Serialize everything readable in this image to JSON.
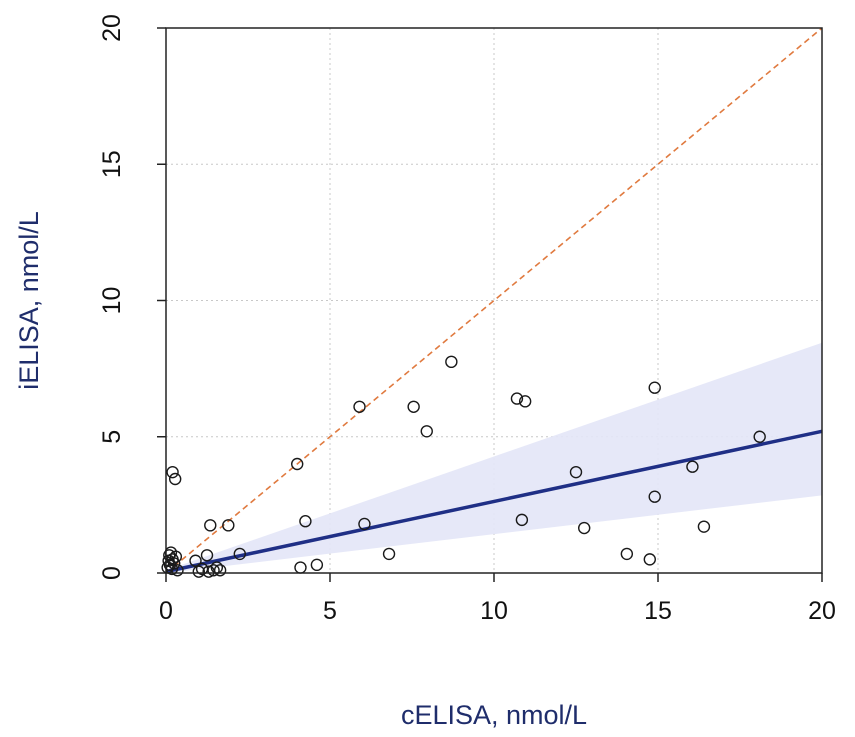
{
  "chart_data": {
    "type": "scatter",
    "xlabel": "cELISA, nmol/L",
    "ylabel": "iELISA, nmol/L",
    "xlim": [
      0,
      20
    ],
    "ylim": [
      0,
      20
    ],
    "x_ticks": [
      "0",
      "5",
      "10",
      "15",
      "20"
    ],
    "y_ticks": [
      "0",
      "5",
      "10",
      "15",
      "20"
    ],
    "grid": true,
    "colors": {
      "points": "#1a1a1a",
      "regression": "#1f2f86",
      "confidence_band": "#e3e5f7",
      "identity": "#e07a3f",
      "axis_title": "#1f2d6b",
      "grid": "#c8c8c8"
    },
    "series": [
      {
        "name": "samples",
        "type": "scatter",
        "points": [
          [
            0.05,
            0.2
          ],
          [
            0.08,
            0.45
          ],
          [
            0.1,
            0.65
          ],
          [
            0.12,
            0.3
          ],
          [
            0.15,
            0.75
          ],
          [
            0.2,
            0.5
          ],
          [
            0.25,
            0.35
          ],
          [
            0.3,
            0.6
          ],
          [
            0.18,
            0.15
          ],
          [
            0.35,
            0.1
          ],
          [
            0.2,
            3.7
          ],
          [
            0.28,
            3.45
          ],
          [
            0.9,
            0.45
          ],
          [
            1.0,
            0.05
          ],
          [
            1.1,
            0.15
          ],
          [
            1.25,
            0.65
          ],
          [
            1.3,
            0.05
          ],
          [
            1.35,
            1.75
          ],
          [
            1.45,
            0.1
          ],
          [
            1.55,
            0.2
          ],
          [
            1.65,
            0.1
          ],
          [
            1.9,
            1.75
          ],
          [
            2.25,
            0.7
          ],
          [
            4.0,
            4.0
          ],
          [
            4.1,
            0.2
          ],
          [
            4.25,
            1.9
          ],
          [
            4.6,
            0.3
          ],
          [
            5.9,
            6.1
          ],
          [
            6.05,
            1.8
          ],
          [
            6.8,
            0.7
          ],
          [
            7.55,
            6.1
          ],
          [
            7.95,
            5.2
          ],
          [
            8.7,
            7.75
          ],
          [
            10.7,
            6.4
          ],
          [
            10.85,
            1.95
          ],
          [
            10.95,
            6.3
          ],
          [
            12.5,
            3.7
          ],
          [
            12.75,
            1.65
          ],
          [
            14.05,
            0.7
          ],
          [
            14.75,
            0.5
          ],
          [
            14.9,
            6.8
          ],
          [
            14.9,
            2.8
          ],
          [
            16.05,
            3.9
          ],
          [
            16.4,
            1.7
          ],
          [
            18.1,
            5.0
          ]
        ]
      },
      {
        "name": "regression fit",
        "type": "line",
        "x": [
          0,
          20
        ],
        "y": [
          0.05,
          5.2
        ]
      },
      {
        "name": "95% confidence band",
        "type": "area",
        "x": [
          0,
          20
        ],
        "upper": [
          0.1,
          8.45
        ],
        "lower": [
          0.0,
          2.85
        ]
      },
      {
        "name": "line of identity",
        "type": "line",
        "x": [
          0,
          20
        ],
        "y": [
          0,
          20
        ]
      }
    ]
  }
}
